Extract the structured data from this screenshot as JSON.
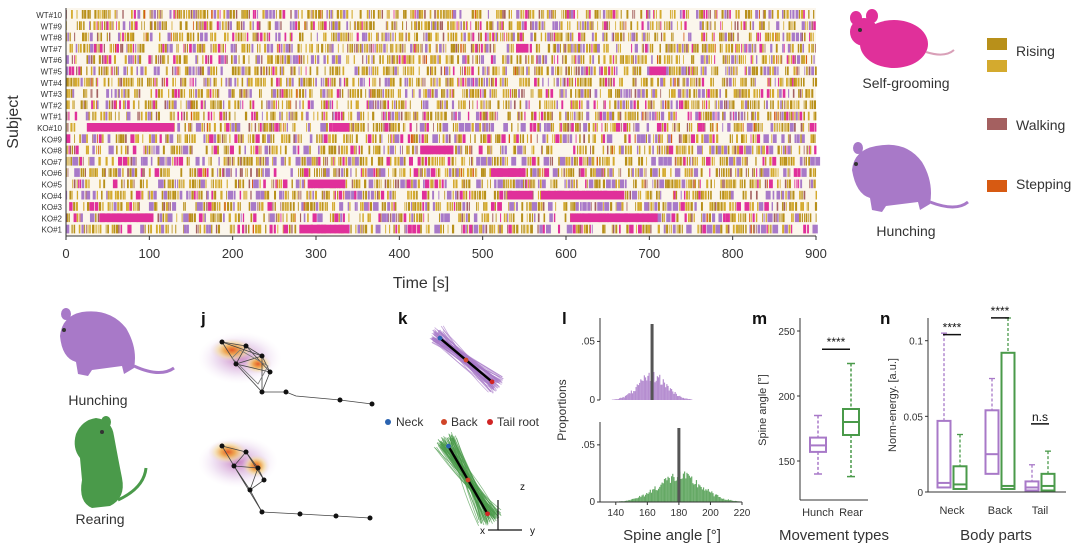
{
  "colors": {
    "self_grooming": "#e0309a",
    "hunching": "#a879c8",
    "rearing": "#4a9a4a",
    "rising": "#b8901a",
    "rising_light": "#d4aa2e",
    "walking": "#a46060",
    "stepping": "#d75a12",
    "ethogram_bg": "#fbf6ec"
  },
  "icons": [
    "mouse-self-grooming-icon",
    "mouse-hunching-icon",
    "mouse-rearing-icon"
  ],
  "raster": {
    "subjects": [
      "WT#10",
      "WT#9",
      "WT#8",
      "WT#7",
      "WT#6",
      "WT#5",
      "WT#4",
      "WT#3",
      "WT#2",
      "WT#1",
      "KO#10",
      "KO#9",
      "KO#8",
      "KO#7",
      "KO#6",
      "KO#5",
      "KO#4",
      "KO#3",
      "KO#2",
      "KO#1"
    ],
    "xlabel": "Time [s]",
    "ylabel": "Subject",
    "xticks": [
      "0",
      "100",
      "200",
      "300",
      "400",
      "500",
      "600",
      "700",
      "800",
      "900"
    ],
    "xlim": [
      0,
      900
    ]
  },
  "legend": {
    "labels": [
      "Self-grooming",
      "Hunching",
      "Rising",
      "Walking",
      "Stepping"
    ]
  },
  "panels": {
    "j": "j",
    "k": "k",
    "l": "l",
    "m": "m",
    "n": "n"
  },
  "bottom_labels": {
    "hunching": "Hunching",
    "rearing": "Rearing"
  },
  "skeleton_legend": [
    "Neck",
    "Back",
    "Tail root"
  ],
  "axis3d": {
    "z": "z",
    "x": "x",
    "y": "y"
  },
  "chart_data": [
    {
      "type": "heatmap",
      "title": "",
      "xlabel": "Time [s]",
      "ylabel": "Subject",
      "xlim": [
        0,
        900
      ],
      "categories": [
        "WT#10",
        "WT#9",
        "WT#8",
        "WT#7",
        "WT#6",
        "WT#5",
        "WT#4",
        "WT#3",
        "WT#2",
        "WT#1",
        "KO#10",
        "KO#9",
        "KO#8",
        "KO#7",
        "KO#6",
        "KO#5",
        "KO#4",
        "KO#3",
        "KO#2",
        "KO#1"
      ],
      "long_self_grooming_bouts": [
        {
          "subject": "KO#10",
          "start": 25,
          "end": 130
        },
        {
          "subject": "KO#10",
          "start": 320,
          "end": 340
        },
        {
          "subject": "KO#8",
          "start": 425,
          "end": 465
        },
        {
          "subject": "KO#6",
          "start": 510,
          "end": 550
        },
        {
          "subject": "KO#5",
          "start": 290,
          "end": 335
        },
        {
          "subject": "KO#4",
          "start": 570,
          "end": 670
        },
        {
          "subject": "KO#4",
          "start": 530,
          "end": 560
        },
        {
          "subject": "KO#2",
          "start": 40,
          "end": 105
        },
        {
          "subject": "KO#2",
          "start": 605,
          "end": 710
        },
        {
          "subject": "KO#1",
          "start": 280,
          "end": 340
        },
        {
          "subject": "WT#7",
          "start": 540,
          "end": 555
        },
        {
          "subject": "WT#5",
          "start": 700,
          "end": 720
        }
      ]
    },
    {
      "type": "bar",
      "title": "",
      "xlabel": "Spine angle [°]",
      "ylabel": "Proportions",
      "xlim": [
        130,
        220
      ],
      "ylim": [
        0,
        0.07
      ],
      "xticks": [
        140,
        160,
        180,
        200,
        220
      ],
      "yticks": [
        0,
        0.05
      ],
      "series": [
        {
          "name": "Hunching",
          "mean": 163,
          "peak": 0.02,
          "sd": 9
        },
        {
          "name": "Rearing",
          "mean": 180,
          "peak": 0.022,
          "sd": 14
        }
      ]
    },
    {
      "type": "bar",
      "title": "",
      "xlabel": "Movement types",
      "ylabel": "Spine angle [°]",
      "ylim": [
        120,
        260
      ],
      "yticks": [
        150,
        200,
        250
      ],
      "categories": [
        "Hunch",
        "Rear"
      ],
      "boxes": [
        {
          "name": "Hunch",
          "min": 140,
          "q1": 157,
          "median": 162,
          "q3": 168,
          "max": 185
        },
        {
          "name": "Rear",
          "min": 138,
          "q1": 170,
          "median": 180,
          "q3": 190,
          "max": 225
        }
      ],
      "annotation": "****"
    },
    {
      "type": "bar",
      "title": "",
      "xlabel": "Body parts",
      "ylabel": "Norm-energy. [a.u.]",
      "ylim": [
        0,
        0.115
      ],
      "yticks": [
        0,
        0.05,
        0.1
      ],
      "ytick_labels": [
        "0",
        "0.05",
        "0.1"
      ],
      "categories": [
        "Neck",
        "Back",
        "Tail"
      ],
      "boxes": [
        {
          "group": "Neck",
          "series": "Hunch",
          "min": 0,
          "q1": 0.003,
          "median": 0.006,
          "q3": 0.047,
          "max": 0.105
        },
        {
          "group": "Neck",
          "series": "Rear",
          "min": 0,
          "q1": 0.002,
          "median": 0.005,
          "q3": 0.017,
          "max": 0.038
        },
        {
          "group": "Back",
          "series": "Hunch",
          "min": 0,
          "q1": 0.012,
          "median": 0.025,
          "q3": 0.054,
          "max": 0.075
        },
        {
          "group": "Back",
          "series": "Rear",
          "min": 0,
          "q1": 0.002,
          "median": 0.004,
          "q3": 0.092,
          "max": 0.12
        },
        {
          "group": "Tail",
          "series": "Hunch",
          "min": 0,
          "q1": 0.001,
          "median": 0.003,
          "q3": 0.007,
          "max": 0.018
        },
        {
          "group": "Tail",
          "series": "Rear",
          "min": 0,
          "q1": 0.001,
          "median": 0.004,
          "q3": 0.012,
          "max": 0.027
        }
      ],
      "annotations": [
        "****",
        "****",
        "n.s"
      ]
    }
  ]
}
